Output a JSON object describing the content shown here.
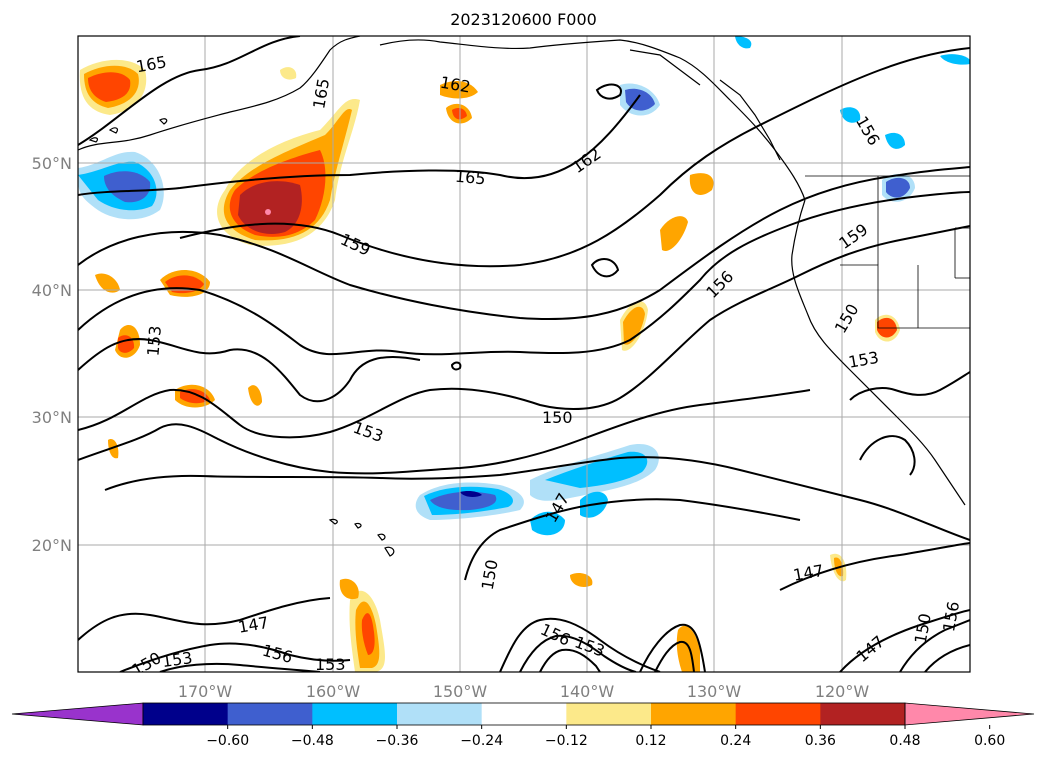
{
  "title": "2023120600 F000",
  "map": {
    "lat_labels": [
      "50°N",
      "40°N",
      "30°N",
      "20°N"
    ],
    "lon_labels": [
      "170°W",
      "160°W",
      "150°W",
      "140°W",
      "130°W",
      "120°W"
    ],
    "contour_labels": [
      "165",
      "165",
      "162",
      "165",
      "162",
      "159",
      "156",
      "156",
      "159",
      "150",
      "153",
      "153",
      "150",
      "153",
      "147",
      "150",
      "147",
      "147",
      "156",
      "153",
      "150",
      "153",
      "156",
      "153",
      "147",
      "150",
      "156"
    ]
  },
  "colorbar": {
    "colors": [
      "#9933cc",
      "#00008b",
      "#3f5fcf",
      "#00bfff",
      "#b0e0f8",
      "#ffffff",
      "#fce98a",
      "#ffa500",
      "#ff4500",
      "#b22222",
      "#ff88aa"
    ],
    "tick_labels": [
      "−0.60",
      "−0.48",
      "−0.36",
      "−0.24",
      "−0.12",
      "0.12",
      "0.24",
      "0.36",
      "0.48",
      "0.60"
    ]
  }
}
